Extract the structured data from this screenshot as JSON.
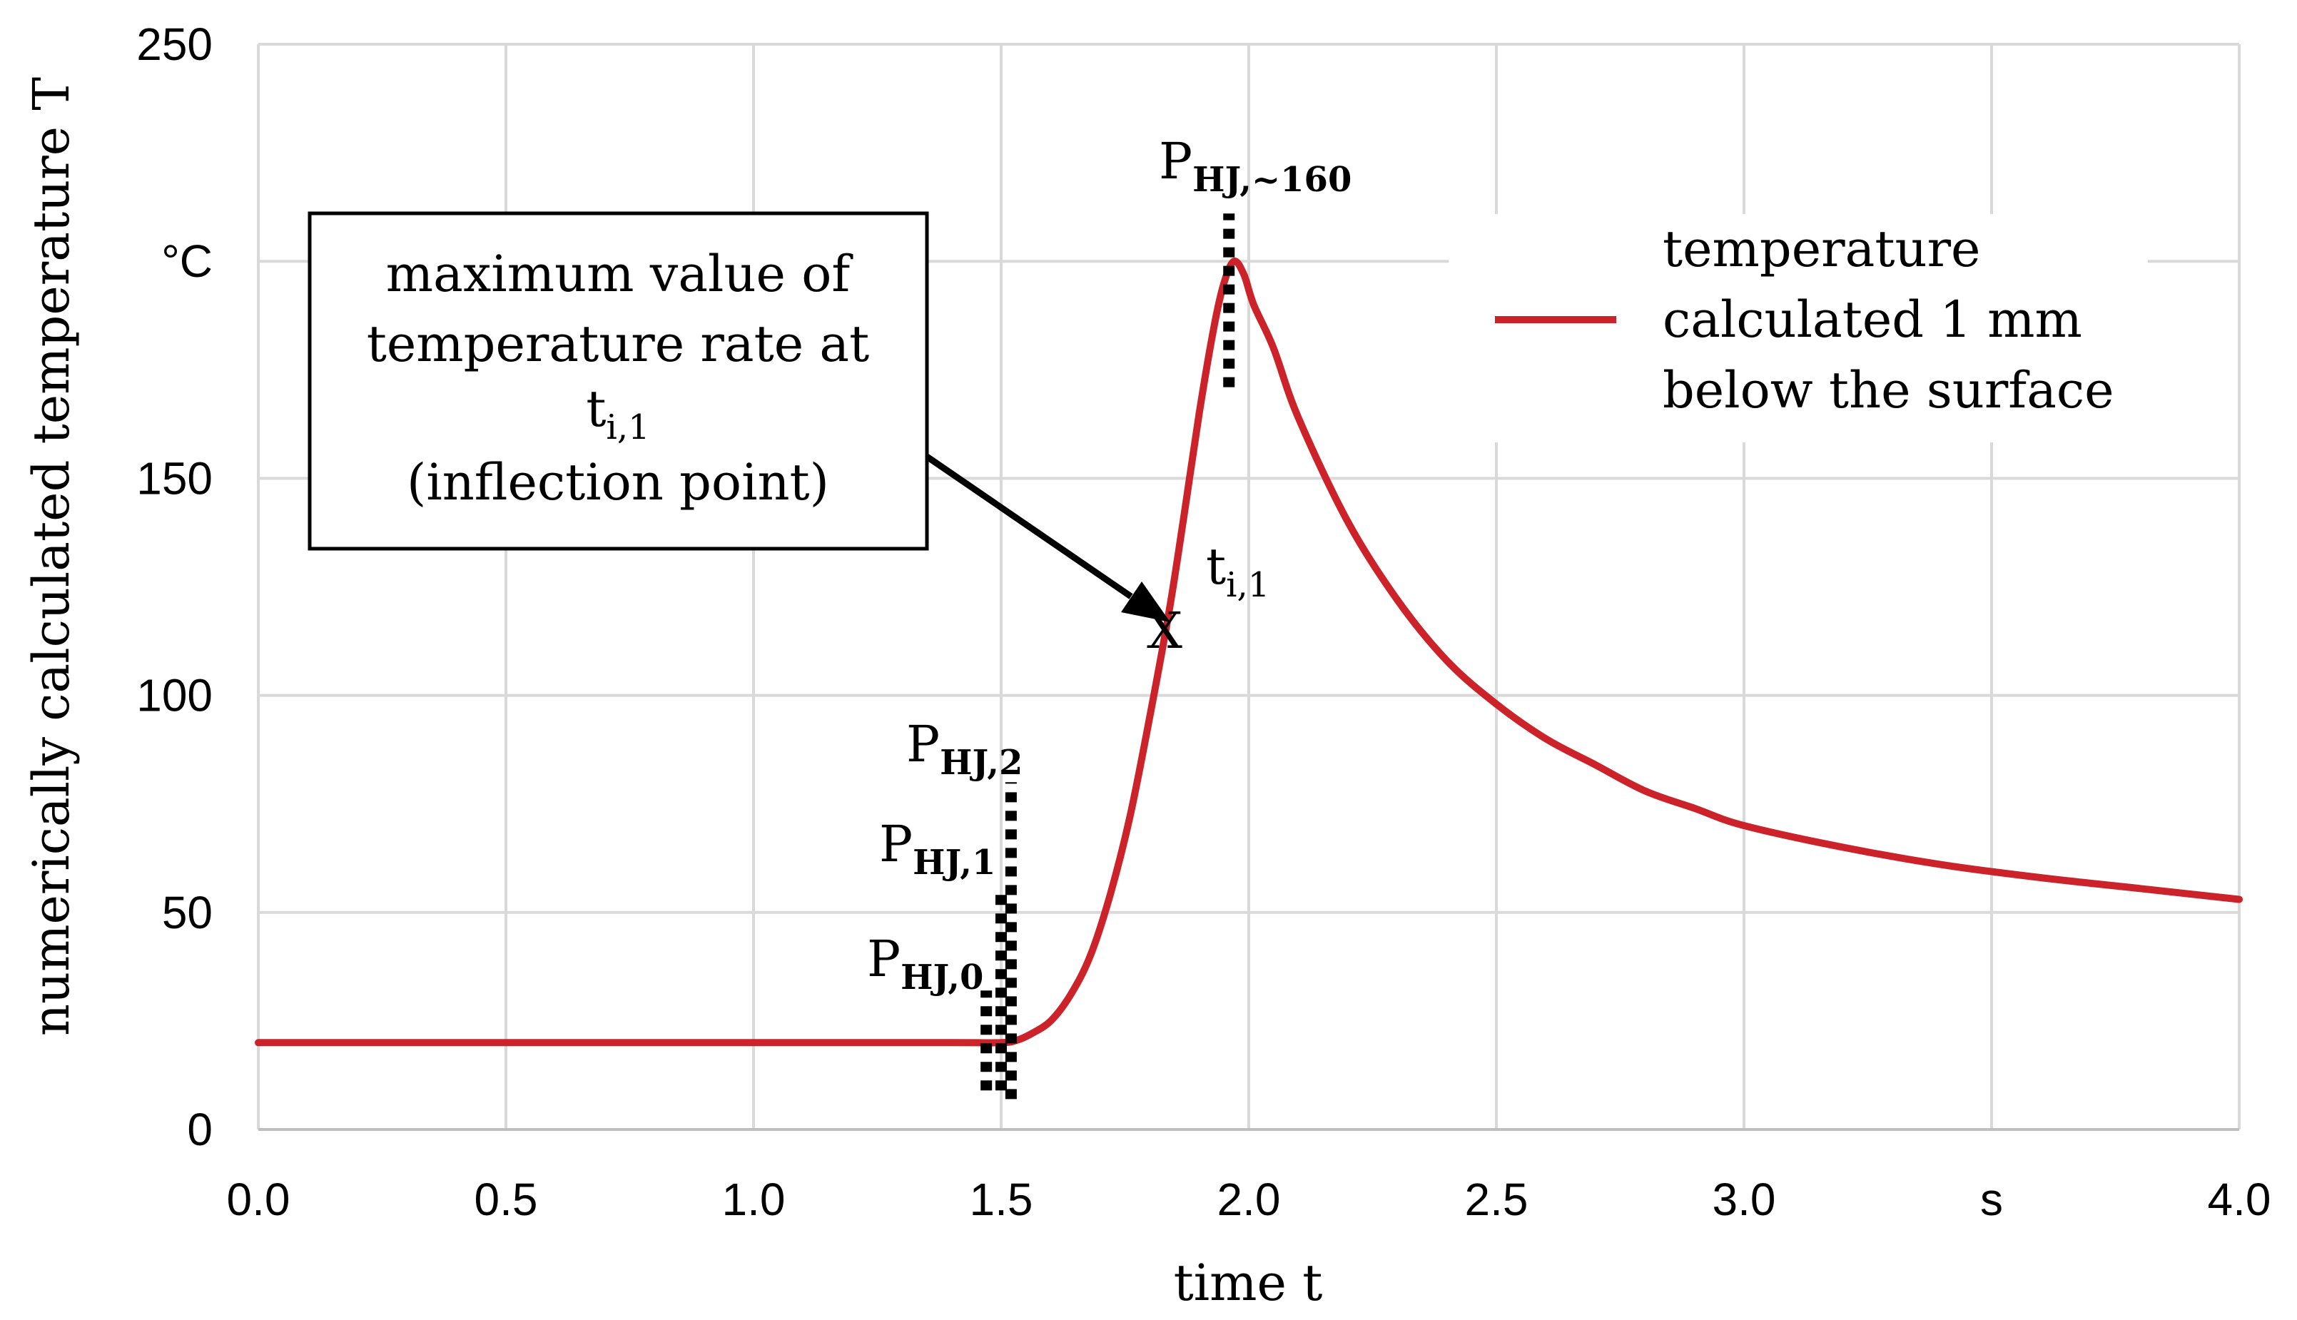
{
  "colors": {
    "series": "#cc2229",
    "grid": "#d9d9d9",
    "axis": "#bfbfbf",
    "ink": "#000000"
  },
  "chart_data": {
    "type": "line",
    "title": "",
    "xlabel": "time t",
    "ylabel": "numerically calculated temperature T",
    "xlim": [
      0,
      4
    ],
    "ylim": [
      0,
      250
    ],
    "x_ticks": [
      0,
      0.5,
      1,
      1.5,
      2,
      2.5,
      3,
      3.5,
      4
    ],
    "x_tick_labels": [
      "0.0",
      "0.5",
      "1.0",
      "1.5",
      "2.0",
      "2.5",
      "3.0",
      "s",
      "4.0"
    ],
    "y_ticks": [
      0,
      50,
      100,
      150,
      200,
      250
    ],
    "y_tick_labels": [
      "0",
      "50",
      "100",
      "150",
      "°C",
      "250"
    ],
    "grid": true,
    "legend_position": "top-right",
    "series": [
      {
        "name": "temperature calculated 1 mm below the surface",
        "legend_lines": [
          "temperature",
          "calculated 1 mm",
          "below the surface"
        ],
        "x": [
          0,
          0.5,
          1.0,
          1.4,
          1.5,
          1.53,
          1.56,
          1.6,
          1.64,
          1.68,
          1.72,
          1.76,
          1.8,
          1.84,
          1.87,
          1.9,
          1.93,
          1.95,
          1.97,
          1.99,
          2.01,
          2.05,
          2.1,
          2.2,
          2.3,
          2.4,
          2.5,
          2.6,
          2.7,
          2.8,
          2.9,
          3.0,
          3.2,
          3.4,
          3.6,
          3.8,
          4.0
        ],
        "y": [
          20,
          20,
          20,
          20,
          20,
          20.5,
          22,
          25,
          31,
          40,
          54,
          72,
          95,
          120,
          142,
          165,
          185,
          195,
          200,
          197,
          190,
          180,
          164,
          140,
          122,
          108,
          98,
          90,
          84,
          78,
          74,
          70,
          65,
          61,
          58,
          55.5,
          53
        ]
      }
    ],
    "annotations": {
      "callout_lines": [
        "maximum value of",
        "temperature rate at",
        "t",
        "(inflection point)"
      ],
      "callout_sub": "i,1",
      "inflection_point": {
        "x": 1.85,
        "y": 117,
        "marker": "X",
        "label": "t",
        "label_sub": "i,1"
      },
      "markers": [
        {
          "label": "P",
          "sub": "HJ,0",
          "x": 1.47,
          "y_from": 9,
          "y_to": 32
        },
        {
          "label": "P",
          "sub": "HJ,1",
          "x": 1.5,
          "y_from": 9,
          "y_to": 55
        },
        {
          "label": "P",
          "sub": "HJ,2",
          "x": 1.52,
          "y_from": 7,
          "y_to": 80
        },
        {
          "label": "P",
          "sub": "HJ,~160",
          "x": 1.96,
          "y_from": 171,
          "y_to": 211
        }
      ]
    }
  }
}
